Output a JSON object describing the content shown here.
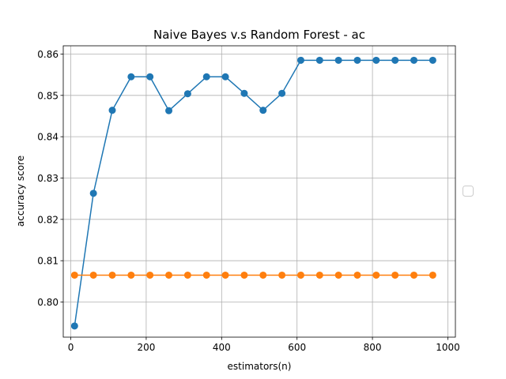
{
  "chart_data": {
    "type": "line",
    "title": "Naive Bayes v.s Random Forest - ac",
    "xlabel": "estimators(n)",
    "ylabel": "accuracy score",
    "xlim": [
      -20,
      1020
    ],
    "ylim": [
      0.7915,
      0.862
    ],
    "xticks": [
      0,
      200,
      400,
      600,
      800,
      1000
    ],
    "yticks": [
      0.8,
      0.81,
      0.82,
      0.83,
      0.84,
      0.85,
      0.86
    ],
    "xtick_labels": [
      "0",
      "200",
      "400",
      "600",
      "800",
      "1000"
    ],
    "ytick_labels": [
      "0.80",
      "0.81",
      "0.82",
      "0.83",
      "0.84",
      "0.85",
      "0.86"
    ],
    "grid": true,
    "legend": "center-right, empty",
    "x": [
      10,
      60,
      110,
      160,
      210,
      260,
      310,
      360,
      410,
      460,
      510,
      560,
      610,
      660,
      710,
      760,
      810,
      860,
      910,
      960
    ],
    "series": [
      {
        "color": "#1f77b4",
        "values": [
          0.7942,
          0.8263,
          0.8464,
          0.8545,
          0.8545,
          0.8463,
          0.8504,
          0.8545,
          0.8545,
          0.8505,
          0.8464,
          0.8505,
          0.8585,
          0.8585,
          0.8585,
          0.8585,
          0.8585,
          0.8585,
          0.8585,
          0.8585
        ]
      },
      {
        "color": "#ff7f0e",
        "values": [
          0.8065,
          0.8065,
          0.8065,
          0.8065,
          0.8065,
          0.8065,
          0.8065,
          0.8065,
          0.8065,
          0.8065,
          0.8065,
          0.8065,
          0.8065,
          0.8065,
          0.8065,
          0.8065,
          0.8065,
          0.8065,
          0.8065,
          0.8065
        ]
      }
    ]
  }
}
